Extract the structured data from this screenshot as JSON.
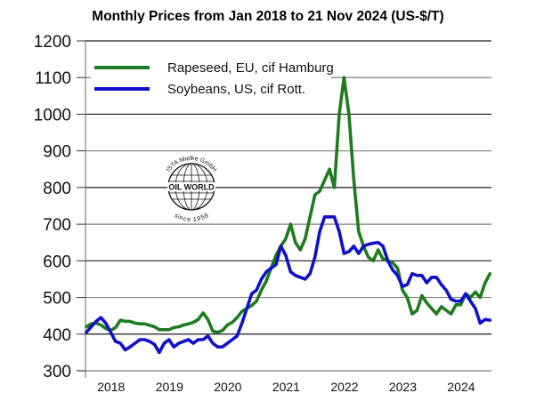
{
  "chart_data": {
    "type": "line",
    "title": "Monthly Prices from Jan 2018 to 21 Nov 2024 (US-$/T)",
    "xlabel": "",
    "ylabel": "",
    "ylim": [
      300,
      1200
    ],
    "yticks": [
      300,
      400,
      500,
      600,
      700,
      800,
      900,
      1000,
      1100,
      1200
    ],
    "xticks": [
      "2018",
      "2019",
      "2020",
      "2021",
      "2022",
      "2023",
      "2024"
    ],
    "x_start": "Jan 2018",
    "x_end": "Nov 2024",
    "grid": true,
    "legend_position": "top-left",
    "series": [
      {
        "name": "Rapeseed, EU, cif Hamburg",
        "color": "#1e7b1e",
        "values": [
          420,
          428,
          430,
          425,
          415,
          410,
          418,
          438,
          435,
          435,
          430,
          428,
          428,
          424,
          420,
          412,
          412,
          412,
          418,
          420,
          425,
          428,
          432,
          440,
          458,
          440,
          408,
          405,
          410,
          425,
          432,
          445,
          462,
          470,
          478,
          490,
          520,
          545,
          580,
          615,
          640,
          660,
          700,
          650,
          630,
          660,
          720,
          780,
          790,
          820,
          850,
          800,
          1000,
          1100,
          1000,
          820,
          680,
          640,
          610,
          600,
          630,
          605,
          600,
          595,
          580,
          520,
          500,
          455,
          465,
          505,
          485,
          470,
          455,
          475,
          465,
          455,
          480,
          480,
          510,
          500,
          515,
          500,
          540,
          565
        ]
      },
      {
        "name": "Soybeans, US, cif Rott.",
        "color": "#1010c8",
        "values": [
          405,
          420,
          435,
          445,
          430,
          405,
          380,
          375,
          357,
          365,
          375,
          385,
          385,
          380,
          372,
          350,
          375,
          385,
          365,
          375,
          380,
          385,
          375,
          385,
          385,
          395,
          375,
          365,
          365,
          375,
          385,
          395,
          430,
          470,
          510,
          520,
          550,
          570,
          580,
          590,
          640,
          615,
          570,
          560,
          555,
          550,
          565,
          610,
          680,
          720,
          720,
          720,
          680,
          620,
          625,
          640,
          620,
          640,
          645,
          648,
          650,
          640,
          600,
          575,
          560,
          530,
          535,
          565,
          560,
          560,
          540,
          555,
          555,
          535,
          520,
          495,
          490,
          490,
          510,
          490,
          470,
          430,
          440,
          438
        ]
      }
    ]
  },
  "logo": {
    "top_text": "ISTA Mielke GmbH",
    "middle_text": "OIL WORLD",
    "bottom_text": "since 1958"
  }
}
